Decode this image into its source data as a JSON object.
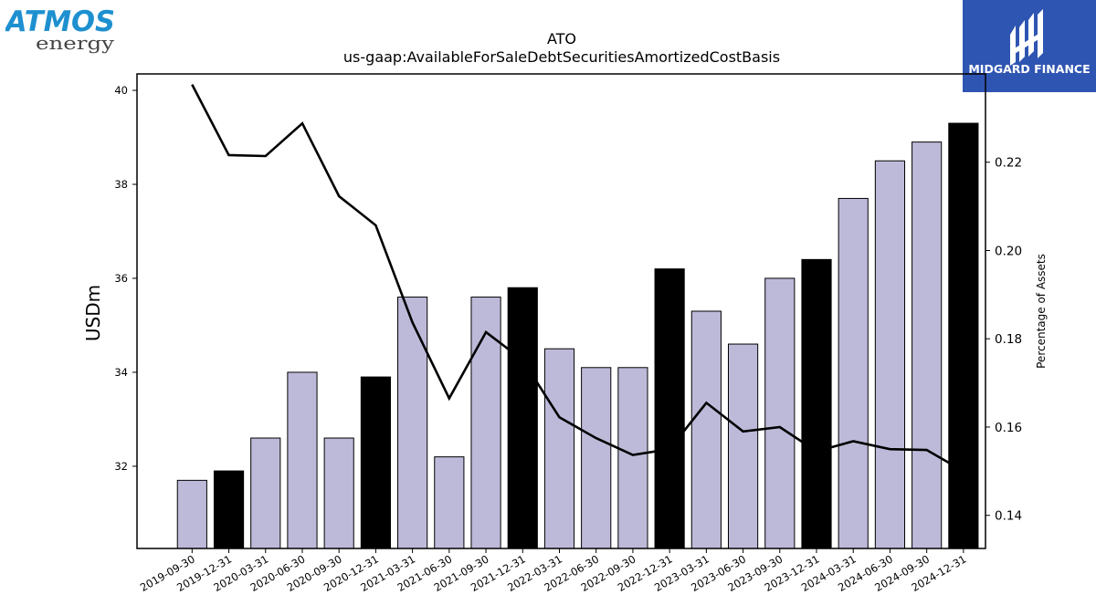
{
  "logos": {
    "left_wordmark_top": "ATMOS",
    "left_wordmark_bottom": "energy",
    "right_name": "MIDGARD FINANCE"
  },
  "colors": {
    "bar_normal": "#bdbad9",
    "bar_year_end": "#000000",
    "line": "#000000",
    "atmos_blue": "#1e90d0",
    "midgard_blue": "#2f55b2"
  },
  "chart_data": {
    "type": "bar",
    "title": "ATO",
    "subtitle": "us-gaap:AvailableForSaleDebtSecuritiesAmortizedCostBasis",
    "ylabel": "USDm",
    "y2label": "Percentage of Assets",
    "ylim": [
      30.25,
      40.35
    ],
    "y2lim": [
      0.1325,
      0.24
    ],
    "yticks": [
      "32",
      "34",
      "36",
      "38",
      "40"
    ],
    "y2ticks": [
      "0.14",
      "0.16",
      "0.18",
      "0.20",
      "0.22"
    ],
    "categories": [
      "2019-09-30",
      "2019-12-31",
      "2020-03-31",
      "2020-06-30",
      "2020-09-30",
      "2020-12-31",
      "2021-03-31",
      "2021-06-30",
      "2021-09-30",
      "2021-12-31",
      "2022-03-31",
      "2022-06-30",
      "2022-09-30",
      "2022-12-31",
      "2023-03-31",
      "2023-06-30",
      "2023-09-30",
      "2023-12-31",
      "2024-03-31",
      "2024-06-30",
      "2024-09-30",
      "2024-12-31"
    ],
    "series": [
      {
        "axis": "left",
        "type": "bar",
        "values": [
          31.7,
          31.9,
          32.6,
          34.0,
          32.6,
          33.9,
          35.6,
          32.2,
          35.6,
          35.8,
          34.5,
          34.1,
          34.1,
          36.2,
          35.3,
          34.6,
          36.0,
          36.4,
          37.7,
          38.5,
          38.9,
          39.3
        ],
        "year_end": [
          false,
          true,
          false,
          false,
          false,
          true,
          false,
          false,
          false,
          true,
          false,
          false,
          false,
          true,
          false,
          false,
          false,
          true,
          false,
          false,
          false,
          true
        ]
      },
      {
        "axis": "right",
        "type": "line",
        "values": [
          0.2376,
          0.2216,
          0.2214,
          0.2288,
          0.2123,
          0.2057,
          0.1837,
          0.1665,
          0.1815,
          0.1752,
          0.1622,
          0.1575,
          0.1537,
          0.155,
          0.1655,
          0.159,
          0.16,
          0.1545,
          0.1568,
          0.155,
          0.1548,
          0.15
        ]
      }
    ],
    "grid": false
  }
}
